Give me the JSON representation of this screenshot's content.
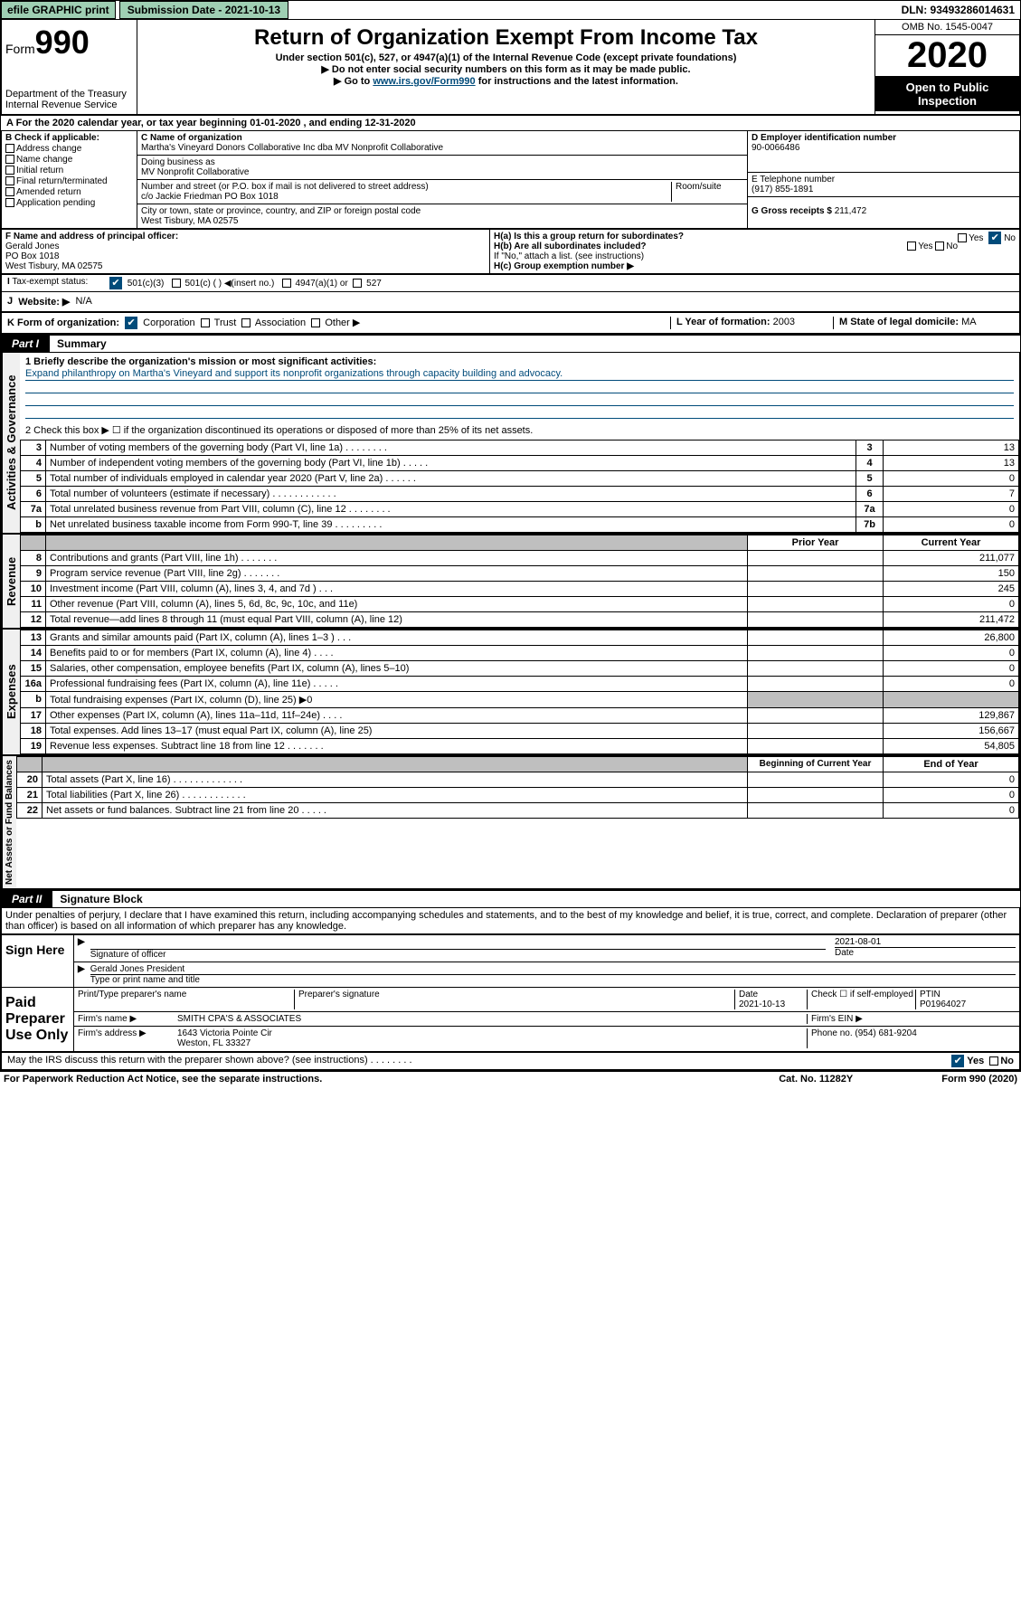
{
  "topbar": {
    "efile": "efile GRAPHIC print",
    "submission": "Submission Date - 2021-10-13",
    "dln": "DLN: 93493286014631"
  },
  "header": {
    "form_prefix": "Form",
    "form_num": "990",
    "dept": "Department of the Treasury",
    "irs": "Internal Revenue Service",
    "title": "Return of Organization Exempt From Income Tax",
    "sub1": "Under section 501(c), 527, or 4947(a)(1) of the Internal Revenue Code (except private foundations)",
    "sub2": "▶ Do not enter social security numbers on this form as it may be made public.",
    "sub3_pre": "▶ Go to ",
    "sub3_link": "www.irs.gov/Form990",
    "sub3_post": " for instructions and the latest information.",
    "omb": "OMB No. 1545-0047",
    "year": "2020",
    "open": "Open to Public Inspection"
  },
  "lineA": "For the 2020 calendar year, or tax year beginning 01-01-2020   , and ending 12-31-2020",
  "B": {
    "label": "B Check if applicable:",
    "items": [
      "Address change",
      "Name change",
      "Initial return",
      "Final return/terminated",
      "Amended return",
      "Application pending"
    ]
  },
  "C": {
    "name_lbl": "C Name of organization",
    "name": "Martha's Vineyard Donors Collaborative Inc dba MV Nonprofit Collaborative",
    "dba_lbl": "Doing business as",
    "dba": "MV Nonprofit Collaborative",
    "addr_lbl": "Number and street (or P.O. box if mail is not delivered to street address)",
    "room_lbl": "Room/suite",
    "addr": "c/o Jackie Friedman PO Box 1018",
    "city_lbl": "City or town, state or province, country, and ZIP or foreign postal code",
    "city": "West Tisbury, MA  02575"
  },
  "D": {
    "lbl": "D Employer identification number",
    "val": "90-0066486"
  },
  "E": {
    "lbl": "E Telephone number",
    "val": "(917) 855-1891"
  },
  "G": {
    "lbl": "G Gross receipts $",
    "val": "211,472"
  },
  "F": {
    "lbl": "F  Name and address of principal officer:",
    "name": "Gerald Jones",
    "addr1": "PO Box 1018",
    "addr2": "West Tisbury, MA  02575"
  },
  "H": {
    "a": "H(a)  Is this a group return for subordinates?",
    "b": "H(b)  Are all subordinates included?",
    "note": "If \"No,\" attach a list. (see instructions)",
    "c": "H(c)  Group exemption number ▶",
    "yes": "Yes",
    "no": "No"
  },
  "I": {
    "lbl": "Tax-exempt status:",
    "c3": "501(c)(3)",
    "c": "501(c) (  ) ◀(insert no.)",
    "a1": "4947(a)(1) or",
    "s527": "527"
  },
  "J": {
    "lbl": "Website: ▶",
    "val": "N/A"
  },
  "K": {
    "lbl": "K Form of organization:",
    "corp": "Corporation",
    "trust": "Trust",
    "assoc": "Association",
    "other": "Other ▶"
  },
  "L": {
    "lbl": "L Year of formation:",
    "val": "2003"
  },
  "M": {
    "lbl": "M State of legal domicile:",
    "val": "MA"
  },
  "part1": {
    "tab": "Part I",
    "title": "Summary"
  },
  "summary": {
    "l1_lbl": "1  Briefly describe the organization's mission or most significant activities:",
    "l1_text": "Expand philanthropy on Martha's Vineyard and support its nonprofit organizations through capacity building and advocacy.",
    "l2": "2   Check this box ▶ ☐  if the organization discontinued its operations or disposed of more than 25% of its net assets.",
    "rows_gov": [
      {
        "n": "3",
        "t": "Number of voting members of the governing body (Part VI, line 1a)   .    .    .    .    .    .    .    .",
        "b": "3",
        "v": "13"
      },
      {
        "n": "4",
        "t": "Number of independent voting members of the governing body (Part VI, line 1b)  .    .    .    .    .",
        "b": "4",
        "v": "13"
      },
      {
        "n": "5",
        "t": "Total number of individuals employed in calendar year 2020 (Part V, line 2a)  .    .    .    .    .    .",
        "b": "5",
        "v": "0"
      },
      {
        "n": "6",
        "t": "Total number of volunteers (estimate if necessary)  .    .    .    .    .    .    .    .    .    .    .    .",
        "b": "6",
        "v": "7"
      },
      {
        "n": "7a",
        "t": "Total unrelated business revenue from Part VIII, column (C), line 12  .    .    .    .    .    .    .    .",
        "b": "7a",
        "v": "0"
      },
      {
        "n": "b",
        "t": "Net unrelated business taxable income from Form 990-T, line 39  .    .    .    .    .    .    .    .    .",
        "b": "7b",
        "v": "0"
      }
    ],
    "col_prior": "Prior Year",
    "col_curr": "Current Year",
    "rows_rev": [
      {
        "n": "8",
        "t": "Contributions and grants (Part VIII, line 1h)  .    .    .    .    .    .    .",
        "p": "",
        "c": "211,077"
      },
      {
        "n": "9",
        "t": "Program service revenue (Part VIII, line 2g)  .    .    .    .    .    .    .",
        "p": "",
        "c": "150"
      },
      {
        "n": "10",
        "t": "Investment income (Part VIII, column (A), lines 3, 4, and 7d )  .    .    .",
        "p": "",
        "c": "245"
      },
      {
        "n": "11",
        "t": "Other revenue (Part VIII, column (A), lines 5, 6d, 8c, 9c, 10c, and 11e)",
        "p": "",
        "c": "0"
      },
      {
        "n": "12",
        "t": "Total revenue—add lines 8 through 11 (must equal Part VIII, column (A), line 12)",
        "p": "",
        "c": "211,472"
      }
    ],
    "rows_exp": [
      {
        "n": "13",
        "t": "Grants and similar amounts paid (Part IX, column (A), lines 1–3 )  .    .    .",
        "p": "",
        "c": "26,800"
      },
      {
        "n": "14",
        "t": "Benefits paid to or for members (Part IX, column (A), line 4)  .    .    .    .",
        "p": "",
        "c": "0"
      },
      {
        "n": "15",
        "t": "Salaries, other compensation, employee benefits (Part IX, column (A), lines 5–10)",
        "p": "",
        "c": "0"
      },
      {
        "n": "16a",
        "t": "Professional fundraising fees (Part IX, column (A), line 11e)  .    .    .    .    .",
        "p": "",
        "c": "0"
      },
      {
        "n": "b",
        "t": "Total fundraising expenses (Part IX, column (D), line 25) ▶0",
        "grey": true
      },
      {
        "n": "17",
        "t": "Other expenses (Part IX, column (A), lines 11a–11d, 11f–24e)  .    .    .    .",
        "p": "",
        "c": "129,867"
      },
      {
        "n": "18",
        "t": "Total expenses. Add lines 13–17 (must equal Part IX, column (A), line 25)",
        "p": "",
        "c": "156,667"
      },
      {
        "n": "19",
        "t": "Revenue less expenses. Subtract line 18 from line 12  .    .    .    .    .    .    .",
        "p": "",
        "c": "54,805"
      }
    ],
    "col_begin": "Beginning of Current Year",
    "col_end": "End of Year",
    "rows_net": [
      {
        "n": "20",
        "t": "Total assets (Part X, line 16)  .    .    .    .    .    .    .    .    .    .    .    .    .",
        "p": "",
        "c": "0"
      },
      {
        "n": "21",
        "t": "Total liabilities (Part X, line 26)  .    .    .    .    .    .    .    .    .    .    .    .",
        "p": "",
        "c": "0"
      },
      {
        "n": "22",
        "t": "Net assets or fund balances. Subtract line 21 from line 20  .    .    .    .    .",
        "p": "",
        "c": "0"
      }
    ]
  },
  "vert": {
    "gov": "Activities & Governance",
    "rev": "Revenue",
    "exp": "Expenses",
    "net": "Net Assets or Fund Balances"
  },
  "part2": {
    "tab": "Part II",
    "title": "Signature Block"
  },
  "sig": {
    "decl": "Under penalties of perjury, I declare that I have examined this return, including accompanying schedules and statements, and to the best of my knowledge and belief, it is true, correct, and complete. Declaration of preparer (other than officer) is based on all information of which preparer has any knowledge.",
    "sign_here": "Sign Here",
    "sig_officer": "Signature of officer",
    "date": "2021-08-01",
    "date_lbl": "Date",
    "name": "Gerald Jones President",
    "name_lbl": "Type or print name and title",
    "paid": "Paid Preparer Use Only",
    "prep_name_lbl": "Print/Type preparer's name",
    "prep_sig_lbl": "Preparer's signature",
    "prep_date_lbl": "Date",
    "prep_date": "2021-10-13",
    "self_emp": "Check ☐ if self-employed",
    "ptin_lbl": "PTIN",
    "ptin": "P01964027",
    "firm_name_lbl": "Firm's name    ▶",
    "firm_name": "SMITH CPA'S & ASSOCIATES",
    "firm_ein": "Firm's EIN ▶",
    "firm_addr_lbl": "Firm's address ▶",
    "firm_addr1": "1643 Victoria Pointe Cir",
    "firm_addr2": "Weston, FL  33327",
    "phone_lbl": "Phone no.",
    "phone": "(954) 681-9204",
    "discuss": "May the IRS discuss this return with the preparer shown above? (see instructions)    .    .    .    .    .    .    .    .",
    "yes": "Yes",
    "no": "No"
  },
  "footer": {
    "pra": "For Paperwork Reduction Act Notice, see the separate instructions.",
    "cat": "Cat. No. 11282Y",
    "form": "Form 990 (2020)"
  }
}
